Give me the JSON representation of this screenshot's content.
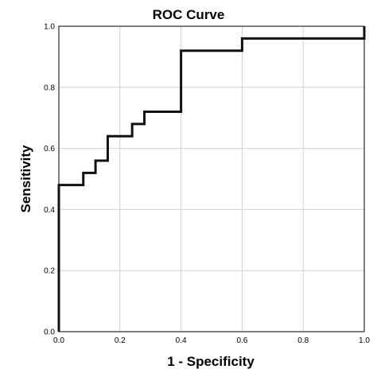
{
  "chart_data": {
    "type": "line",
    "title": "ROC Curve",
    "xlabel": "1 - Specificity",
    "ylabel": "Sensitivity",
    "xlim": [
      0,
      1
    ],
    "ylim": [
      0,
      1
    ],
    "grid": true,
    "x_ticks": [
      "0.0",
      "0.2",
      "0.4",
      "0.6",
      "0.8",
      "1.0"
    ],
    "y_ticks": [
      "0.0",
      "0.2",
      "0.4",
      "0.6",
      "0.8",
      "1.0"
    ],
    "series": [
      {
        "color": "#111111",
        "step": true,
        "x": [
          0.0,
          0.0,
          0.08,
          0.08,
          0.12,
          0.12,
          0.16,
          0.16,
          0.24,
          0.24,
          0.28,
          0.28,
          0.4,
          0.4,
          0.6,
          0.6,
          1.0,
          1.0
        ],
        "y": [
          0.0,
          0.48,
          0.48,
          0.52,
          0.52,
          0.56,
          0.56,
          0.64,
          0.64,
          0.68,
          0.68,
          0.72,
          0.72,
          0.92,
          0.92,
          0.96,
          0.96,
          1.0
        ]
      }
    ]
  }
}
